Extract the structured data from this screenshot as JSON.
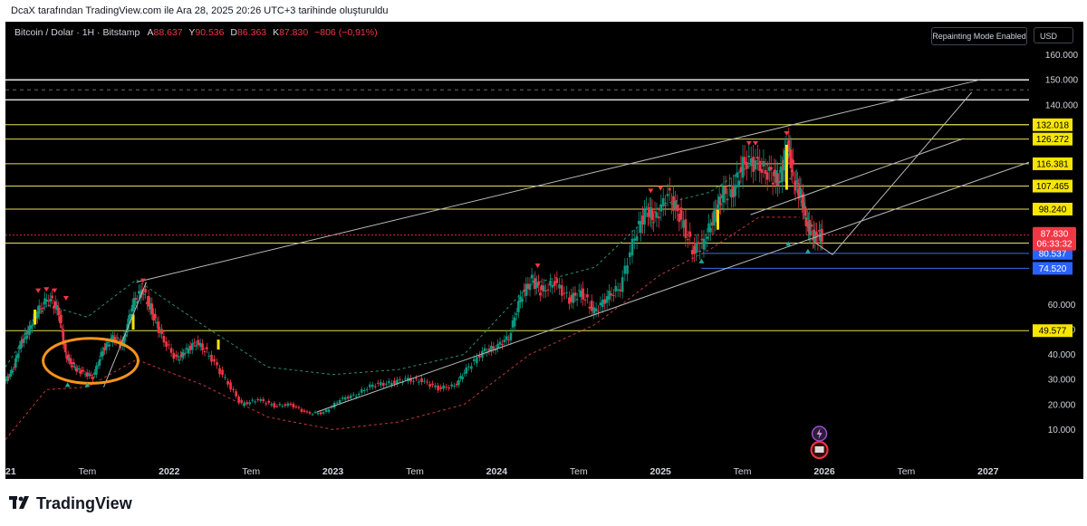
{
  "page_title": "DcaX tarafından TradingView.com ile Ara 28, 2025 20:26 UTC+3 tarihinde oluşturuldu",
  "symbol": {
    "name": "Bitcoin / Dolar · 1H · Bitstamp",
    "open_label": "A",
    "open": "88.637",
    "high_label": "Y",
    "high": "90.536",
    "low_label": "D",
    "low": "86.363",
    "close_label": "K",
    "close": "87.830",
    "change": "−806 (−0,91%)"
  },
  "buttons": {
    "repainting": "Repainting Mode Enabled",
    "currency": "USD"
  },
  "colors": {
    "background": "#000000",
    "up": "#089981",
    "down": "#f23645",
    "level": "#e6e05a",
    "highlight": "#f7e600",
    "accent": "#f7931a"
  },
  "footer": {
    "brand": "TradingView"
  },
  "chart_data": {
    "type": "candlestick",
    "x_range": [
      2021.0,
      2027.25
    ],
    "ylim": [
      0,
      170000
    ],
    "x_ticks": [
      {
        "x": 2021.0,
        "label": "2021"
      },
      {
        "x": 2021.5,
        "label": "Tem"
      },
      {
        "x": 2022.0,
        "label": "2022"
      },
      {
        "x": 2022.5,
        "label": "Tem"
      },
      {
        "x": 2023.0,
        "label": "2023"
      },
      {
        "x": 2023.5,
        "label": "Tem"
      },
      {
        "x": 2024.0,
        "label": "2024"
      },
      {
        "x": 2024.5,
        "label": "Tem"
      },
      {
        "x": 2025.0,
        "label": "2025"
      },
      {
        "x": 2025.5,
        "label": "Tem"
      },
      {
        "x": 2026.0,
        "label": "2026"
      },
      {
        "x": 2026.5,
        "label": "Tem"
      },
      {
        "x": 2027.0,
        "label": "2027"
      }
    ],
    "y_ticks": [
      {
        "v": 10000,
        "label": "10.000"
      },
      {
        "v": 20000,
        "label": "20.000"
      },
      {
        "v": 30000,
        "label": "30.000"
      },
      {
        "v": 40000,
        "label": "40.000"
      },
      {
        "v": 50000,
        "label": "50.000"
      },
      {
        "v": 60000,
        "label": "60.000"
      },
      {
        "v": 140000,
        "label": "140.000"
      },
      {
        "v": 150000,
        "label": "150.000"
      },
      {
        "v": 160000,
        "label": "160.000"
      }
    ],
    "price_levels": [
      {
        "v": 132018,
        "label": "132.018",
        "style": "yellow"
      },
      {
        "v": 126272,
        "label": "126.272",
        "style": "yellow"
      },
      {
        "v": 116381,
        "label": "116.381",
        "style": "yellow"
      },
      {
        "v": 107465,
        "label": "107.465",
        "style": "yellow"
      },
      {
        "v": 98240,
        "label": "98.240",
        "style": "yellow"
      },
      {
        "v": 84624,
        "label": "84.624",
        "style": "yellow"
      },
      {
        "v": 80537,
        "label": "80.537",
        "style": "blue"
      },
      {
        "v": 74520,
        "label": "74.520",
        "style": "blue"
      },
      {
        "v": 49577,
        "label": "49.577",
        "style": "yellow"
      }
    ],
    "last_price": {
      "v": 87830,
      "label": "87.830",
      "countdown": "06:33:32"
    },
    "white_lines": [
      150000,
      142000
    ],
    "series": [
      {
        "x": 2021.0,
        "y": 29000
      },
      {
        "x": 2021.05,
        "y": 34000
      },
      {
        "x": 2021.1,
        "y": 45000
      },
      {
        "x": 2021.15,
        "y": 50000
      },
      {
        "x": 2021.2,
        "y": 57000
      },
      {
        "x": 2021.27,
        "y": 63000
      },
      {
        "x": 2021.33,
        "y": 57000
      },
      {
        "x": 2021.37,
        "y": 40000
      },
      {
        "x": 2021.42,
        "y": 35000
      },
      {
        "x": 2021.47,
        "y": 33000
      },
      {
        "x": 2021.54,
        "y": 31000
      },
      {
        "x": 2021.6,
        "y": 42000
      },
      {
        "x": 2021.66,
        "y": 47000
      },
      {
        "x": 2021.72,
        "y": 44000
      },
      {
        "x": 2021.78,
        "y": 60000
      },
      {
        "x": 2021.84,
        "y": 66000
      },
      {
        "x": 2021.9,
        "y": 57000
      },
      {
        "x": 2021.96,
        "y": 47000
      },
      {
        "x": 2022.05,
        "y": 38000
      },
      {
        "x": 2022.1,
        "y": 41000
      },
      {
        "x": 2022.17,
        "y": 45000
      },
      {
        "x": 2022.25,
        "y": 40000
      },
      {
        "x": 2022.35,
        "y": 30000
      },
      {
        "x": 2022.45,
        "y": 20000
      },
      {
        "x": 2022.55,
        "y": 22000
      },
      {
        "x": 2022.65,
        "y": 19500
      },
      {
        "x": 2022.75,
        "y": 20000
      },
      {
        "x": 2022.85,
        "y": 16500
      },
      {
        "x": 2022.95,
        "y": 16600
      },
      {
        "x": 2023.05,
        "y": 22000
      },
      {
        "x": 2023.15,
        "y": 24000
      },
      {
        "x": 2023.25,
        "y": 28000
      },
      {
        "x": 2023.35,
        "y": 28500
      },
      {
        "x": 2023.45,
        "y": 30000
      },
      {
        "x": 2023.55,
        "y": 29500
      },
      {
        "x": 2023.65,
        "y": 26500
      },
      {
        "x": 2023.75,
        "y": 27500
      },
      {
        "x": 2023.82,
        "y": 34000
      },
      {
        "x": 2023.92,
        "y": 41000
      },
      {
        "x": 2024.0,
        "y": 43000
      },
      {
        "x": 2024.08,
        "y": 47000
      },
      {
        "x": 2024.15,
        "y": 63000
      },
      {
        "x": 2024.22,
        "y": 70000
      },
      {
        "x": 2024.28,
        "y": 65000
      },
      {
        "x": 2024.36,
        "y": 69000
      },
      {
        "x": 2024.45,
        "y": 62000
      },
      {
        "x": 2024.52,
        "y": 65000
      },
      {
        "x": 2024.6,
        "y": 57000
      },
      {
        "x": 2024.68,
        "y": 63000
      },
      {
        "x": 2024.76,
        "y": 67000
      },
      {
        "x": 2024.85,
        "y": 88000
      },
      {
        "x": 2024.92,
        "y": 98000
      },
      {
        "x": 2024.97,
        "y": 94000
      },
      {
        "x": 2025.05,
        "y": 104000
      },
      {
        "x": 2025.12,
        "y": 96000
      },
      {
        "x": 2025.2,
        "y": 82000
      },
      {
        "x": 2025.27,
        "y": 85000
      },
      {
        "x": 2025.33,
        "y": 95000
      },
      {
        "x": 2025.38,
        "y": 104000
      },
      {
        "x": 2025.45,
        "y": 106000
      },
      {
        "x": 2025.52,
        "y": 118000
      },
      {
        "x": 2025.6,
        "y": 116000
      },
      {
        "x": 2025.67,
        "y": 112000
      },
      {
        "x": 2025.73,
        "y": 110000
      },
      {
        "x": 2025.78,
        "y": 124000
      },
      {
        "x": 2025.82,
        "y": 110000
      },
      {
        "x": 2025.86,
        "y": 104000
      },
      {
        "x": 2025.9,
        "y": 92000
      },
      {
        "x": 2025.94,
        "y": 87000
      },
      {
        "x": 2025.99,
        "y": 87830
      }
    ],
    "upper_band": [
      {
        "x": 2021.0,
        "y": 35000
      },
      {
        "x": 2021.25,
        "y": 60000
      },
      {
        "x": 2021.5,
        "y": 55000
      },
      {
        "x": 2021.8,
        "y": 70000
      },
      {
        "x": 2022.2,
        "y": 52000
      },
      {
        "x": 2022.6,
        "y": 35000
      },
      {
        "x": 2023.0,
        "y": 32000
      },
      {
        "x": 2023.4,
        "y": 34000
      },
      {
        "x": 2023.8,
        "y": 40000
      },
      {
        "x": 2024.2,
        "y": 68000
      },
      {
        "x": 2024.6,
        "y": 75000
      },
      {
        "x": 2025.0,
        "y": 100000
      },
      {
        "x": 2025.3,
        "y": 105000
      },
      {
        "x": 2025.6,
        "y": 118000
      },
      {
        "x": 2025.85,
        "y": 108000
      }
    ],
    "lower_band": [
      {
        "x": 2021.0,
        "y": 6000
      },
      {
        "x": 2021.25,
        "y": 26000
      },
      {
        "x": 2021.5,
        "y": 27000
      },
      {
        "x": 2021.8,
        "y": 38000
      },
      {
        "x": 2022.2,
        "y": 28000
      },
      {
        "x": 2022.6,
        "y": 15000
      },
      {
        "x": 2023.0,
        "y": 10000
      },
      {
        "x": 2023.4,
        "y": 13000
      },
      {
        "x": 2023.8,
        "y": 20000
      },
      {
        "x": 2024.2,
        "y": 40000
      },
      {
        "x": 2024.6,
        "y": 52000
      },
      {
        "x": 2025.0,
        "y": 72000
      },
      {
        "x": 2025.3,
        "y": 82000
      },
      {
        "x": 2025.6,
        "y": 95000
      },
      {
        "x": 2025.85,
        "y": 95000
      }
    ],
    "trendlines": [
      {
        "from": {
          "x": 2021.8,
          "y": 69000
        },
        "to": {
          "x": 2026.95,
          "y": 150000
        }
      },
      {
        "from": {
          "x": 2022.9,
          "y": 17000
        },
        "to": {
          "x": 2027.25,
          "y": 117000
        }
      },
      {
        "from": {
          "x": 2025.55,
          "y": 96000
        },
        "to": {
          "x": 2026.85,
          "y": 126500
        }
      },
      {
        "from": {
          "x": 2025.94,
          "y": 85000
        },
        "to": {
          "x": 2026.05,
          "y": 80000
        }
      },
      {
        "from": {
          "x": 2026.05,
          "y": 80000
        },
        "to": {
          "x": 2026.9,
          "y": 145000
        }
      },
      {
        "from": {
          "x": 2021.6,
          "y": 27000
        },
        "to": {
          "x": 2021.86,
          "y": 69000
        }
      }
    ],
    "down_markers": [
      {
        "x": 2021.2,
        "y": 65000
      },
      {
        "x": 2021.25,
        "y": 65500
      },
      {
        "x": 2021.3,
        "y": 65000
      },
      {
        "x": 2021.37,
        "y": 62000
      },
      {
        "x": 2021.84,
        "y": 69000
      },
      {
        "x": 2024.25,
        "y": 75000
      },
      {
        "x": 2024.94,
        "y": 105000
      },
      {
        "x": 2025.0,
        "y": 106000
      },
      {
        "x": 2025.54,
        "y": 124000
      },
      {
        "x": 2025.58,
        "y": 124000
      },
      {
        "x": 2025.77,
        "y": 128000
      }
    ],
    "up_markers": [
      {
        "x": 2021.38,
        "y": 28500
      },
      {
        "x": 2021.5,
        "y": 28500
      },
      {
        "x": 2025.25,
        "y": 78000
      },
      {
        "x": 2025.78,
        "y": 85000
      },
      {
        "x": 2025.9,
        "y": 82000
      }
    ],
    "ellipse": {
      "cx": 2021.52,
      "cy": 37500,
      "rx": 0.29,
      "ry": 9000
    }
  }
}
